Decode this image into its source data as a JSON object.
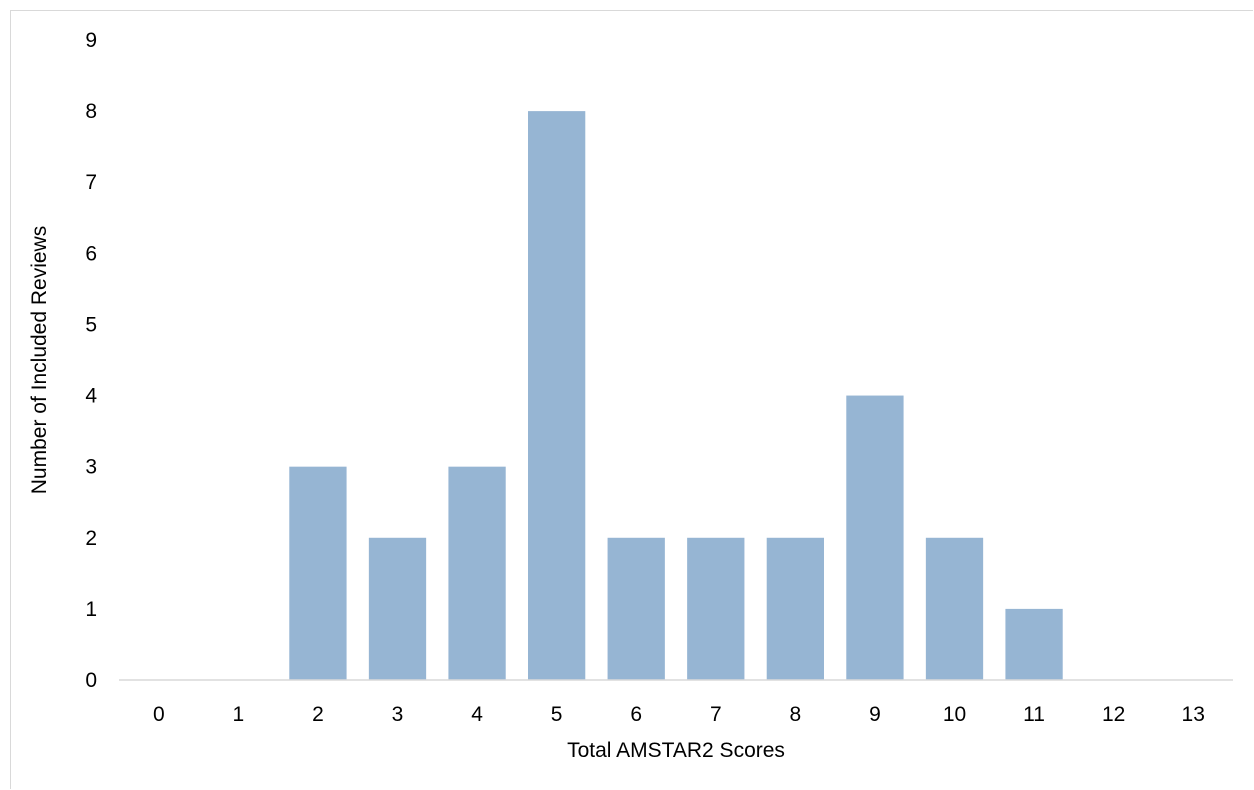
{
  "chart_data": {
    "type": "bar",
    "title": "",
    "xlabel": "Total AMSTAR2 Scores",
    "ylabel": "Number of Included Reviews",
    "categories": [
      "0",
      "1",
      "2",
      "3",
      "4",
      "5",
      "6",
      "7",
      "8",
      "9",
      "10",
      "11",
      "12",
      "13"
    ],
    "values": [
      0,
      0,
      3,
      2,
      3,
      8,
      2,
      2,
      2,
      4,
      2,
      1,
      0,
      0
    ],
    "ylim": [
      0,
      9
    ],
    "yticks": [
      "0",
      "1",
      "2",
      "3",
      "4",
      "5",
      "6",
      "7",
      "8",
      "9"
    ],
    "grid": false,
    "legend": "none",
    "bar_color": "#96b5d3",
    "axis_color": "#d9d9d9"
  }
}
